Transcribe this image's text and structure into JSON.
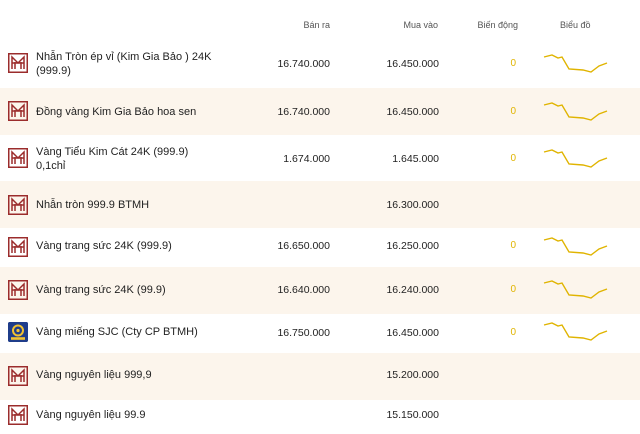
{
  "headers": {
    "sell": "Bán ra",
    "buy": "Mua vào",
    "change": "Biến động",
    "chart": "Biểu đồ"
  },
  "colors": {
    "brand": "#9b2c2c",
    "accent": "#e0b400",
    "alt_row": "#fcf5ec",
    "sjc_blue": "#1f3d8a"
  },
  "rows": [
    {
      "name_line1": "Nhẫn Tròn ép vỉ (Kim Gia Bảo ) 24K",
      "name_line2": "(999.9)",
      "sell": "16.740.000",
      "buy": "16.450.000",
      "change": "0",
      "logo": "btmh-logo"
    },
    {
      "name_line1": "Đồng vàng Kim Gia Bảo hoa sen",
      "name_line2": "",
      "sell": "16.740.000",
      "buy": "16.450.000",
      "change": "0",
      "logo": "btmh-logo"
    },
    {
      "name_line1": "Vàng Tiểu Kim Cát 24K (999.9)",
      "name_line2": "0,1chỉ",
      "sell": "1.674.000",
      "buy": "1.645.000",
      "change": "0",
      "logo": "btmh-logo"
    },
    {
      "name_line1": "Nhẫn tròn 999.9 BTMH",
      "name_line2": "",
      "sell": "",
      "buy": "16.300.000",
      "change": "",
      "logo": "btmh-logo"
    },
    {
      "name_line1": "Vàng trang sức 24K (999.9)",
      "name_line2": "",
      "sell": "16.650.000",
      "buy": "16.250.000",
      "change": "0",
      "logo": "btmh-logo"
    },
    {
      "name_line1": "Vàng trang sức 24K (99.9)",
      "name_line2": "",
      "sell": "16.640.000",
      "buy": "16.240.000",
      "change": "0",
      "logo": "btmh-logo"
    },
    {
      "name_line1": "Vàng miếng SJC (Cty CP BTMH)",
      "name_line2": "",
      "sell": "16.750.000",
      "buy": "16.450.000",
      "change": "0",
      "logo": "sjc-logo"
    },
    {
      "name_line1": "Vàng nguyên liệu 999,9",
      "name_line2": "",
      "sell": "",
      "buy": "15.200.000",
      "change": "",
      "logo": "btmh-logo"
    },
    {
      "name_line1": "Vàng nguyên liệu 99.9",
      "name_line2": "",
      "sell": "",
      "buy": "15.150.000",
      "change": "",
      "logo": "btmh-logo"
    }
  ]
}
